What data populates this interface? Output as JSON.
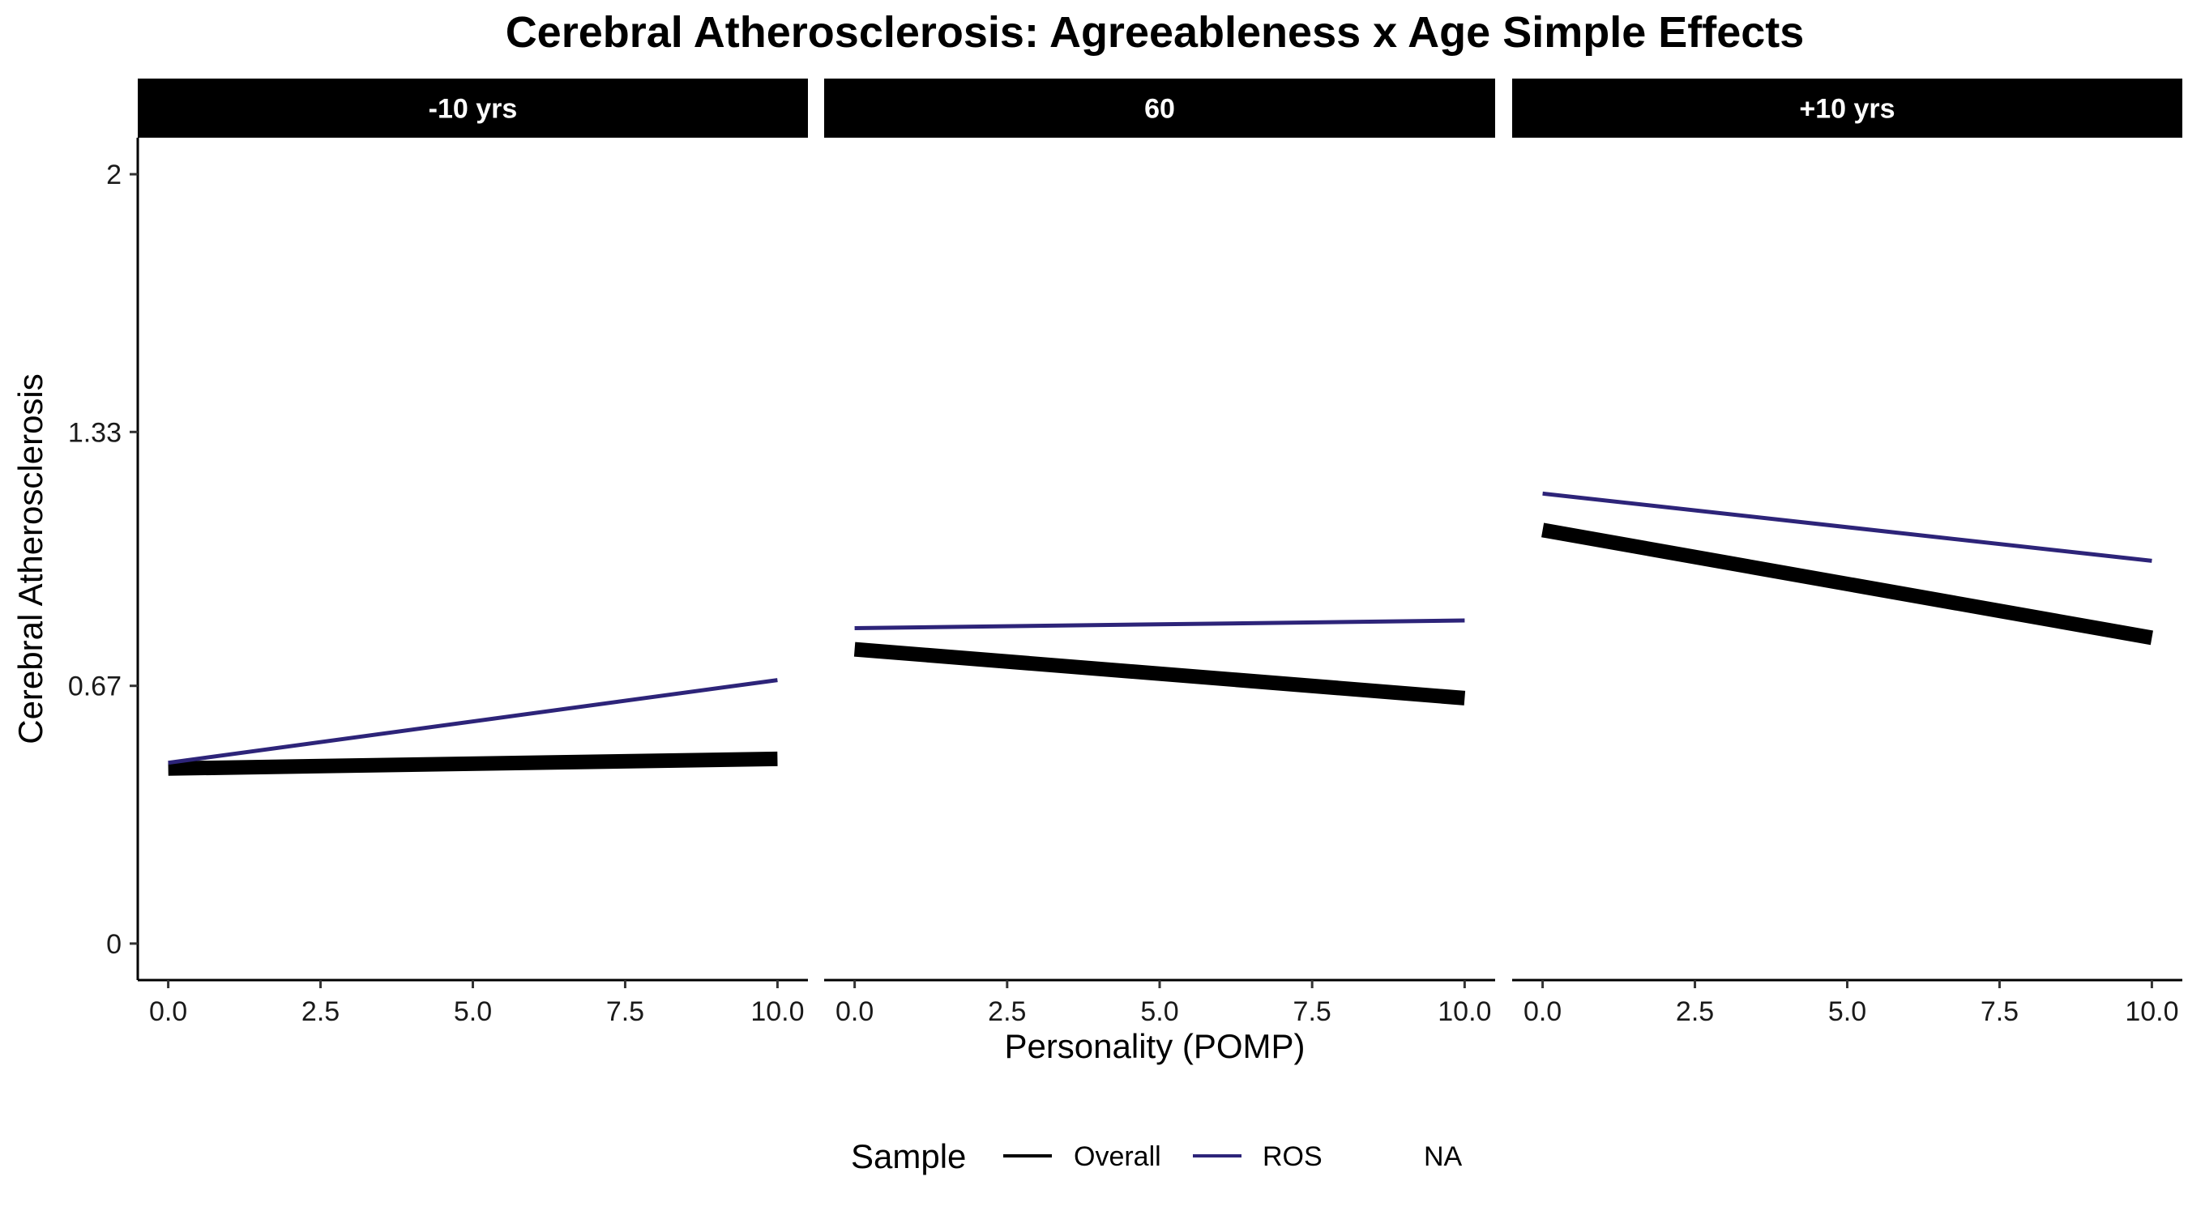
{
  "chart_data": {
    "type": "line",
    "title": "Cerebral Atherosclerosis: Agreeableness x Age Simple Effects",
    "xlabel": "Personality (POMP)",
    "ylabel": "Cerebral Atherosclerosis",
    "xlim": [
      -0.5,
      10.5
    ],
    "ylim": [
      -0.095,
      2.095
    ],
    "x_ticks": [
      0,
      2.5,
      5,
      7.5,
      10
    ],
    "x_tick_labels": [
      "0.0",
      "2.5",
      "5.0",
      "7.5",
      "10.0"
    ],
    "y_ticks": [
      0,
      0.67,
      1.33,
      2
    ],
    "y_tick_labels": [
      "0",
      "0.67",
      "1.33",
      "2"
    ],
    "grid": false,
    "legend": {
      "title": "Sample",
      "position": "bottom",
      "entries": [
        {
          "label": "Overall",
          "color": "#000000",
          "swatch": "line"
        },
        {
          "label": "ROS",
          "color": "#2d2479",
          "swatch": "line"
        },
        {
          "label": "NA",
          "color": "#ffffff",
          "swatch": "none"
        }
      ]
    },
    "panels": [
      {
        "label": "-10 yrs",
        "series": [
          {
            "name": "Overall",
            "color": "#000000",
            "x": [
              0,
              10
            ],
            "y": [
              0.455,
              0.48
            ]
          },
          {
            "name": "ROS",
            "color": "#2d2479",
            "x": [
              0,
              10
            ],
            "y": [
              0.47,
              0.685
            ]
          }
        ]
      },
      {
        "label": "60",
        "series": [
          {
            "name": "Overall",
            "color": "#000000",
            "x": [
              0,
              10
            ],
            "y": [
              0.765,
              0.638
            ]
          },
          {
            "name": "ROS",
            "color": "#2d2479",
            "x": [
              0,
              10
            ],
            "y": [
              0.82,
              0.84
            ]
          }
        ]
      },
      {
        "label": "+10 yrs",
        "series": [
          {
            "name": "Overall",
            "color": "#000000",
            "x": [
              0,
              10
            ],
            "y": [
              1.075,
              0.795
            ]
          },
          {
            "name": "ROS",
            "color": "#2d2479",
            "x": [
              0,
              10
            ],
            "y": [
              1.17,
              0.995
            ]
          }
        ]
      }
    ]
  }
}
